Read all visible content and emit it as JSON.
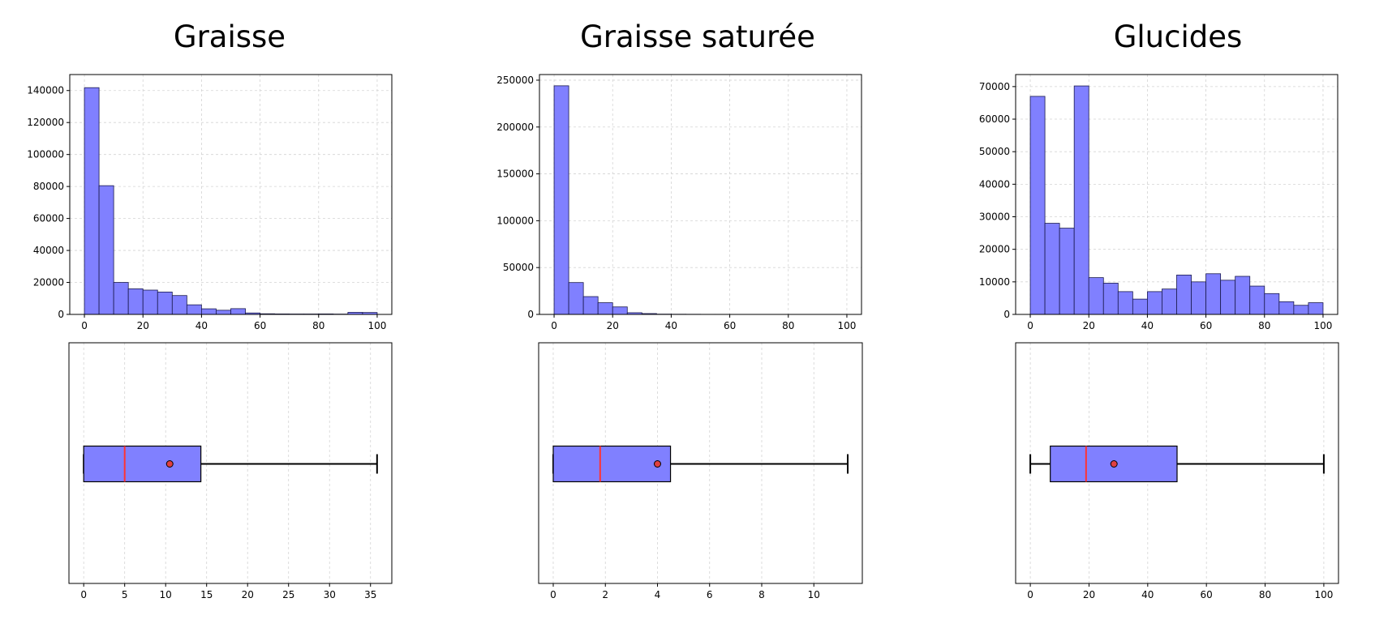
{
  "chart_data": [
    {
      "type": "bar",
      "title": "Graisse",
      "histogram": {
        "bin_edges": [
          0,
          5,
          10,
          15,
          20,
          25,
          30,
          35,
          40,
          45,
          50,
          55,
          60,
          65,
          70,
          75,
          80,
          85,
          90,
          95,
          100
        ],
        "counts": [
          141800,
          80500,
          20000,
          16000,
          15200,
          14000,
          11800,
          6000,
          3500,
          2600,
          3600,
          900,
          400,
          300,
          250,
          250,
          300,
          200,
          1300,
          1200
        ],
        "xticks": [
          0,
          20,
          40,
          60,
          80,
          100
        ],
        "yticks": [
          0,
          20000,
          40000,
          60000,
          80000,
          100000,
          120000,
          140000
        ],
        "xlim": [
          -5,
          105
        ],
        "ylim": [
          0,
          150000
        ]
      },
      "boxplot": {
        "whisker_low": 0,
        "q1": 0,
        "median": 5,
        "q3": 14.3,
        "whisker_high": 35.8,
        "mean": 10.5,
        "xticks": [
          0,
          5,
          10,
          15,
          20,
          25,
          30,
          35
        ],
        "xlim": [
          -1.8,
          37.6
        ]
      },
      "grid": true
    },
    {
      "type": "bar",
      "title": "Graisse saturée",
      "histogram": {
        "bin_edges": [
          0,
          5,
          10,
          15,
          20,
          25,
          30,
          35,
          40,
          45,
          50,
          55,
          60,
          65,
          70,
          75,
          80,
          85,
          90,
          95,
          100
        ],
        "counts": [
          244000,
          34000,
          19000,
          12500,
          8000,
          1800,
          900,
          300,
          200,
          150,
          100,
          100,
          50,
          50,
          50,
          50,
          50,
          50,
          50,
          50
        ],
        "xticks": [
          0,
          20,
          40,
          60,
          80,
          100
        ],
        "yticks": [
          0,
          50000,
          100000,
          150000,
          200000,
          250000
        ],
        "xlim": [
          -5,
          105
        ],
        "ylim": [
          0,
          256000
        ]
      },
      "boxplot": {
        "whisker_low": 0,
        "q1": 0,
        "median": 1.8,
        "q3": 4.5,
        "whisker_high": 11.3,
        "mean": 4,
        "xticks": [
          0,
          2,
          4,
          6,
          8,
          10
        ],
        "xlim": [
          -0.56,
          11.86
        ]
      },
      "grid": true
    },
    {
      "type": "bar",
      "title": "Glucides",
      "histogram": {
        "bin_edges": [
          0,
          5,
          10,
          15,
          20,
          25,
          30,
          35,
          40,
          45,
          50,
          55,
          60,
          65,
          70,
          75,
          80,
          85,
          90,
          95,
          100
        ],
        "counts": [
          67000,
          28000,
          26500,
          70200,
          11300,
          9600,
          7000,
          4700,
          7000,
          7800,
          12100,
          10000,
          12500,
          10500,
          11700,
          8700,
          6400,
          3900,
          2800,
          3600
        ],
        "xticks": [
          0,
          20,
          40,
          60,
          80,
          100
        ],
        "yticks": [
          0,
          10000,
          20000,
          30000,
          40000,
          50000,
          60000,
          70000
        ],
        "xlim": [
          -5,
          105
        ],
        "ylim": [
          0,
          73700
        ]
      },
      "boxplot": {
        "whisker_low": 0,
        "q1": 6.8,
        "median": 19,
        "q3": 50,
        "whisker_high": 100,
        "mean": 28.5,
        "xticks": [
          0,
          20,
          40,
          60,
          80,
          100
        ],
        "xlim": [
          -5,
          105
        ]
      },
      "grid": true
    }
  ],
  "colors": {
    "bar_fill": "#8080ff",
    "bar_edge": "#1a1a4d",
    "median": "#ff3333",
    "mean_fill": "#e04040",
    "grid": "#d3d3d3",
    "axis": "#000000"
  }
}
